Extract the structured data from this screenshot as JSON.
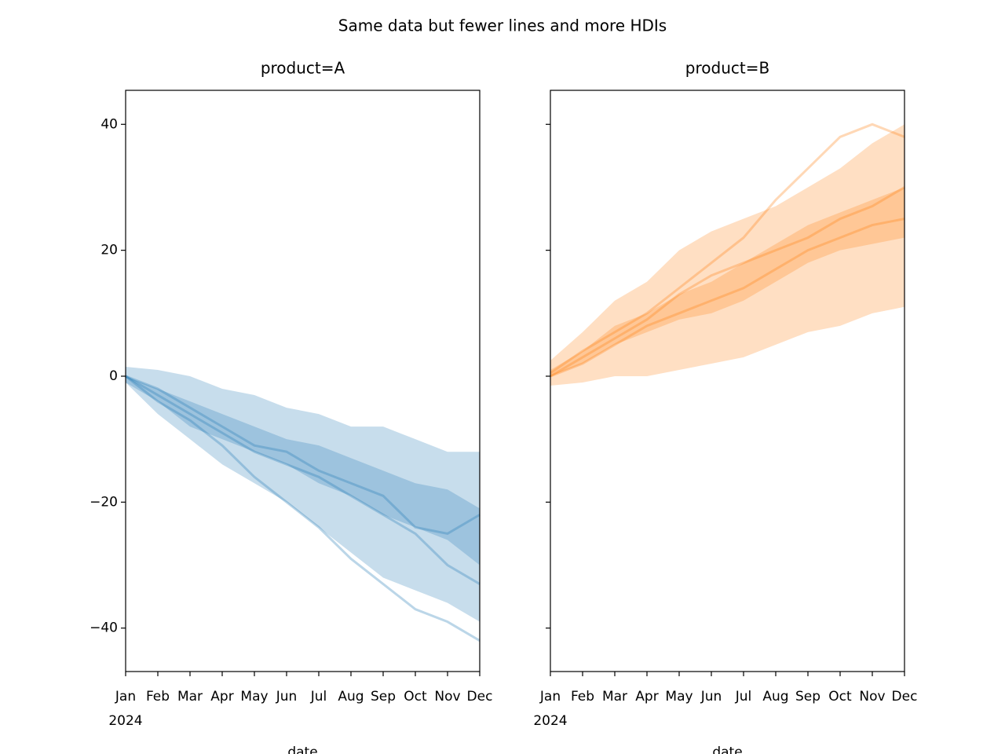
{
  "title": "Same data but fewer lines and more HDIs",
  "chart_data": [
    {
      "type": "line",
      "title": "product=A",
      "x_label": "date",
      "x_year_label": "2024",
      "x": [
        "2024-01",
        "2024-02",
        "2024-03",
        "2024-04",
        "2024-05",
        "2024-06",
        "2024-07",
        "2024-08",
        "2024-09",
        "2024-10",
        "2024-11",
        "2024-12"
      ],
      "xlim": [
        "2024-01",
        "2024-12"
      ],
      "xticks": [
        {
          "value": "2024-01",
          "label": "Jan"
        },
        {
          "value": "2024-02",
          "label": "Feb"
        },
        {
          "value": "2024-03",
          "label": "Mar"
        },
        {
          "value": "2024-04",
          "label": "Apr"
        },
        {
          "value": "2024-05",
          "label": "May"
        },
        {
          "value": "2024-06",
          "label": "Jun"
        },
        {
          "value": "2024-07",
          "label": "Jul"
        },
        {
          "value": "2024-08",
          "label": "Aug"
        },
        {
          "value": "2024-09",
          "label": "Sep"
        },
        {
          "value": "2024-10",
          "label": "Oct"
        },
        {
          "value": "2024-11",
          "label": "Nov"
        },
        {
          "value": "2024-12",
          "label": "Dec"
        }
      ],
      "ylim": [
        -46.9,
        45.4
      ],
      "yticks": [
        {
          "value": -40,
          "label": "−40"
        },
        {
          "value": -20,
          "label": "−20"
        },
        0,
        20,
        40
      ],
      "ytick_labels": true,
      "bands": [
        {
          "color": "#1f77b4",
          "opacity": 0.25,
          "upper": [
            1.5,
            1,
            0,
            -2,
            -3,
            -5,
            -6,
            -8,
            -8,
            -10,
            -12,
            -12
          ],
          "lower": [
            -1,
            -6,
            -10,
            -14,
            -17,
            -20,
            -24,
            -28,
            -32,
            -34,
            -36,
            -39
          ]
        },
        {
          "color": "#1f77b4",
          "opacity": 0.25,
          "upper": [
            0,
            -2,
            -4,
            -6,
            -8,
            -10,
            -11,
            -13,
            -15,
            -17,
            -18,
            -21
          ],
          "lower": [
            -1,
            -4,
            -8,
            -10,
            -12,
            -14,
            -17,
            -19,
            -22,
            -24,
            -26,
            -30
          ]
        }
      ],
      "series": [
        {
          "color": "#1f77b4",
          "values": [
            0,
            -3,
            -6,
            -9,
            -12,
            -14,
            -16,
            -19,
            -22,
            -25,
            -30,
            -33
          ]
        },
        {
          "color": "#1f77b4",
          "values": [
            0,
            -4,
            -7,
            -11,
            -16,
            -20,
            -24,
            -29,
            -33,
            -37,
            -39,
            -42
          ]
        },
        {
          "color": "#1f77b4",
          "values": [
            0,
            -2,
            -5,
            -8,
            -11,
            -12,
            -15,
            -17,
            -19,
            -24,
            -25,
            -22
          ]
        }
      ]
    },
    {
      "type": "line",
      "title": "product=B",
      "x_label": "date",
      "x_year_label": "2024",
      "x": [
        "2024-01",
        "2024-02",
        "2024-03",
        "2024-04",
        "2024-05",
        "2024-06",
        "2024-07",
        "2024-08",
        "2024-09",
        "2024-10",
        "2024-11",
        "2024-12"
      ],
      "xlim": [
        "2024-01",
        "2024-12"
      ],
      "xticks": [
        {
          "value": "2024-01",
          "label": "Jan"
        },
        {
          "value": "2024-02",
          "label": "Feb"
        },
        {
          "value": "2024-03",
          "label": "Mar"
        },
        {
          "value": "2024-04",
          "label": "Apr"
        },
        {
          "value": "2024-05",
          "label": "May"
        },
        {
          "value": "2024-06",
          "label": "Jun"
        },
        {
          "value": "2024-07",
          "label": "Jul"
        },
        {
          "value": "2024-08",
          "label": "Aug"
        },
        {
          "value": "2024-09",
          "label": "Sep"
        },
        {
          "value": "2024-10",
          "label": "Oct"
        },
        {
          "value": "2024-11",
          "label": "Nov"
        },
        {
          "value": "2024-12",
          "label": "Dec"
        }
      ],
      "ylim": [
        -46.9,
        45.4
      ],
      "yticks": [
        -40,
        -20,
        0,
        20,
        40
      ],
      "ytick_labels": false,
      "bands": [
        {
          "color": "#ff7f0e",
          "opacity": 0.25,
          "upper": [
            2.5,
            7,
            12,
            15,
            20,
            23,
            25,
            27,
            30,
            33,
            37,
            40
          ],
          "lower": [
            -1.5,
            -1,
            0,
            0,
            1,
            2,
            3,
            5,
            7,
            8,
            10,
            11
          ]
        },
        {
          "color": "#ff7f0e",
          "opacity": 0.25,
          "upper": [
            1,
            4,
            8,
            10,
            13,
            15,
            18,
            21,
            24,
            26,
            28,
            30
          ],
          "lower": [
            0,
            2,
            5,
            7,
            9,
            10,
            12,
            15,
            18,
            20,
            21,
            22
          ]
        }
      ],
      "series": [
        {
          "color": "#ff7f0e",
          "values": [
            0.5,
            4,
            7,
            10,
            14,
            18,
            22,
            28,
            33,
            38,
            40,
            38
          ]
        },
        {
          "color": "#ff7f0e",
          "values": [
            0,
            3,
            6,
            9,
            13,
            16,
            18,
            20,
            22,
            25,
            27,
            30
          ]
        },
        {
          "color": "#ff7f0e",
          "values": [
            0,
            2,
            5,
            8,
            10,
            12,
            14,
            17,
            20,
            22,
            24,
            25
          ]
        }
      ]
    }
  ]
}
